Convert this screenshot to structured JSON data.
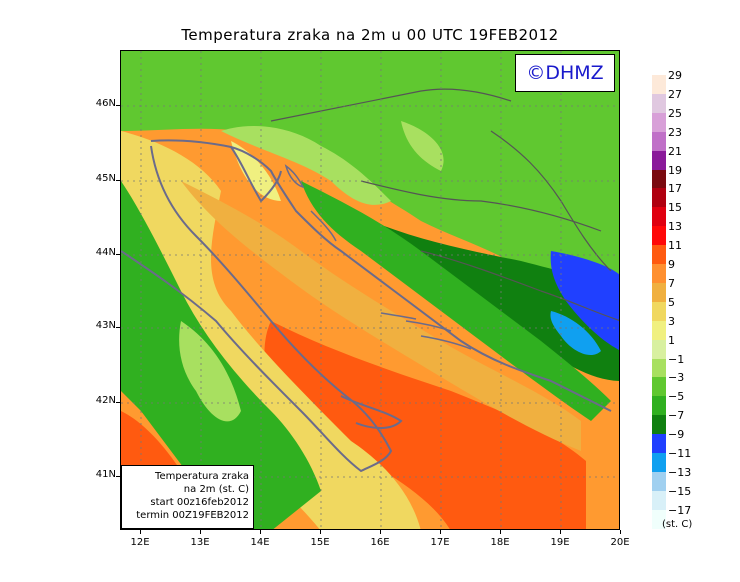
{
  "header": {
    "title": "Temperatura zraka na 2m u 00 UTC 19FEB2012"
  },
  "logo": {
    "text": "©DHMZ"
  },
  "info": {
    "line1": "Temperatura zraka",
    "line2": "na 2m (st. C)",
    "line3": "start 00z16feb2012",
    "line4": "termin 00Z19FEB2012"
  },
  "axes": {
    "lat_labels": [
      "46N",
      "45N",
      "44N",
      "43N",
      "42N",
      "41N"
    ],
    "lon_labels": [
      "12E",
      "13E",
      "14E",
      "15E",
      "16E",
      "17E",
      "18E",
      "19E",
      "20E"
    ]
  },
  "legend": {
    "unit": "(st. C)",
    "labels": [
      "29",
      "27",
      "25",
      "23",
      "21",
      "19",
      "17",
      "15",
      "13",
      "11",
      "9",
      "7",
      "5",
      "3",
      "1",
      "−1",
      "−3",
      "−5",
      "−7",
      "−9",
      "−11",
      "−13",
      "−15",
      "−17"
    ],
    "colors": [
      "#fde9d9",
      "#e0c8e0",
      "#d8a0d8",
      "#c070c8",
      "#8a1a9a",
      "#7a0a10",
      "#b00010",
      "#e00010",
      "#ff0808",
      "#ff5a10",
      "#ff9030",
      "#f0b040",
      "#f0d860",
      "#f0f080",
      "#d8f0a0",
      "#a8e060",
      "#60c830",
      "#30b020",
      "#108010",
      "#2040ff",
      "#10a0f0",
      "#a0d0f0",
      "#d8f0f8",
      "#f0fffc"
    ]
  },
  "map": {
    "sea_color": "#ff9a30",
    "colors": {
      "deep_green": "#108010",
      "green": "#30b020",
      "mid_green": "#60c830",
      "light_green": "#a8e060",
      "pale_green": "#d8f0a0",
      "pale_yellow": "#f0f080",
      "yellow": "#f0d860",
      "gold": "#f0b040",
      "orange": "#ff9030",
      "dark_orange": "#ff5a10",
      "blue": "#2040ff",
      "cyan": "#10a0f0"
    }
  }
}
